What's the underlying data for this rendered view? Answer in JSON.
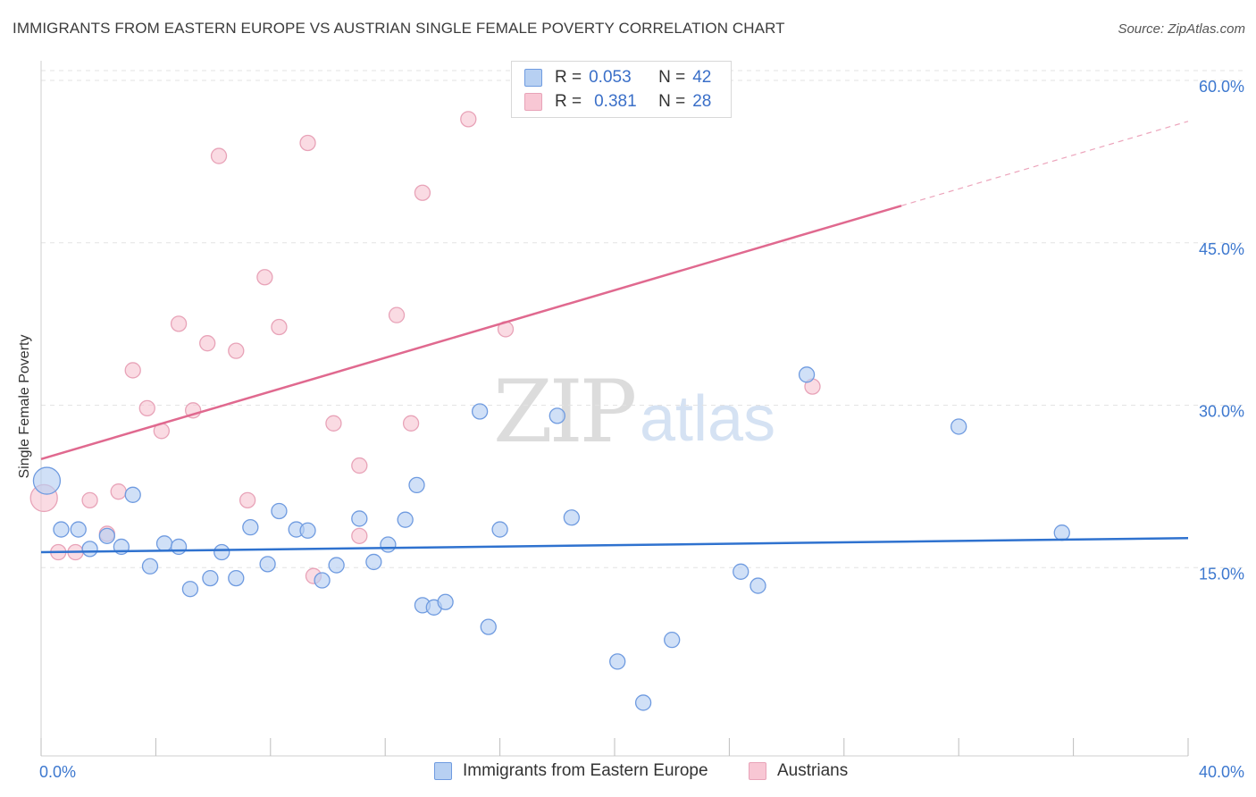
{
  "title": "IMMIGRANTS FROM EASTERN EUROPE VS AUSTRIAN SINGLE FEMALE POVERTY CORRELATION CHART",
  "source": "Source: ZipAtlas.com",
  "watermark": {
    "zip": "ZIP",
    "atlas": "atlas"
  },
  "legend_top": {
    "rows": [
      {
        "r_label": "R =",
        "r_value": "0.053",
        "n_label": "N =",
        "n_value": "42"
      },
      {
        "r_label": "R =",
        "r_value": "0.381",
        "n_label": "N =",
        "n_value": "28"
      }
    ]
  },
  "colors": {
    "blue_fill": "#b7d0f2",
    "blue_stroke": "#6f9be0",
    "blue_line": "#2f72cf",
    "pink_fill": "#f8c7d4",
    "pink_stroke": "#e8a3b8",
    "pink_line": "#e0698f",
    "tick_text": "#3d78cf",
    "grid": "#e3e3e3"
  },
  "chart_data": {
    "type": "scatter",
    "title": "IMMIGRANTS FROM EASTERN EUROPE VS AUSTRIAN SINGLE FEMALE POVERTY CORRELATION CHART",
    "xlabel": "",
    "ylabel": "Single Female Poverty",
    "xlim": [
      0,
      40
    ],
    "ylim": [
      0,
      60
    ],
    "x_tick_labels": [
      "0.0%",
      "40.0%"
    ],
    "y_ticks": [
      15,
      30,
      45,
      60
    ],
    "y_tick_labels": [
      "15.0%",
      "30.0%",
      "45.0%",
      "60.0%"
    ],
    "grid": true,
    "legend_position": "bottom",
    "series": [
      {
        "name": "Immigrants from Eastern Europe",
        "color": "blue",
        "trend": {
          "x": [
            0,
            40
          ],
          "y": [
            17.0,
            18.3
          ]
        },
        "points": [
          [
            0.2,
            23.6
          ],
          [
            0.7,
            19.1
          ],
          [
            1.3,
            19.1
          ],
          [
            1.7,
            17.3
          ],
          [
            2.3,
            18.5
          ],
          [
            2.8,
            17.5
          ],
          [
            3.2,
            22.3
          ],
          [
            3.8,
            15.7
          ],
          [
            4.3,
            17.8
          ],
          [
            4.8,
            17.5
          ],
          [
            5.2,
            13.6
          ],
          [
            5.9,
            14.6
          ],
          [
            6.3,
            17.0
          ],
          [
            6.8,
            14.6
          ],
          [
            7.3,
            19.3
          ],
          [
            7.9,
            15.9
          ],
          [
            8.3,
            20.8
          ],
          [
            8.9,
            19.1
          ],
          [
            9.3,
            19.0
          ],
          [
            9.8,
            14.4
          ],
          [
            10.3,
            15.8
          ],
          [
            11.1,
            20.1
          ],
          [
            11.6,
            16.1
          ],
          [
            12.1,
            17.7
          ],
          [
            12.7,
            20.0
          ],
          [
            13.1,
            23.2
          ],
          [
            13.3,
            12.1
          ],
          [
            13.7,
            11.9
          ],
          [
            14.1,
            12.4
          ],
          [
            15.3,
            30.0
          ],
          [
            15.6,
            10.1
          ],
          [
            16.0,
            19.1
          ],
          [
            18.0,
            29.6
          ],
          [
            18.5,
            20.2
          ],
          [
            20.1,
            6.9
          ],
          [
            21.0,
            3.1
          ],
          [
            22.0,
            8.9
          ],
          [
            24.4,
            15.2
          ],
          [
            25.0,
            13.9
          ],
          [
            26.7,
            33.4
          ],
          [
            32.0,
            28.6
          ],
          [
            35.6,
            18.8
          ]
        ]
      },
      {
        "name": "Austrians",
        "color": "pink",
        "trend": {
          "x": [
            0,
            30
          ],
          "y": [
            25.6,
            49.0
          ],
          "dashed_extension": {
            "x": [
              30,
              40
            ],
            "y": [
              49.0,
              56.8
            ]
          }
        },
        "points": [
          [
            0.1,
            22.0
          ],
          [
            0.6,
            17.0
          ],
          [
            1.2,
            17.0
          ],
          [
            1.7,
            21.8
          ],
          [
            2.3,
            18.7
          ],
          [
            2.7,
            22.6
          ],
          [
            3.2,
            33.8
          ],
          [
            3.7,
            30.3
          ],
          [
            4.2,
            28.2
          ],
          [
            4.8,
            38.1
          ],
          [
            5.3,
            30.1
          ],
          [
            5.8,
            36.3
          ],
          [
            6.2,
            53.6
          ],
          [
            6.8,
            35.6
          ],
          [
            7.2,
            21.8
          ],
          [
            7.8,
            42.4
          ],
          [
            8.3,
            37.8
          ],
          [
            9.3,
            54.8
          ],
          [
            9.5,
            14.8
          ],
          [
            10.2,
            28.9
          ],
          [
            11.1,
            25.0
          ],
          [
            11.1,
            18.5
          ],
          [
            12.4,
            38.9
          ],
          [
            12.9,
            28.9
          ],
          [
            13.3,
            50.2
          ],
          [
            14.9,
            57.0
          ],
          [
            16.2,
            37.6
          ],
          [
            26.9,
            32.3
          ]
        ]
      }
    ]
  },
  "legend_bottom": {
    "items": [
      {
        "label": "Immigrants from Eastern Europe"
      },
      {
        "label": "Austrians"
      }
    ]
  }
}
